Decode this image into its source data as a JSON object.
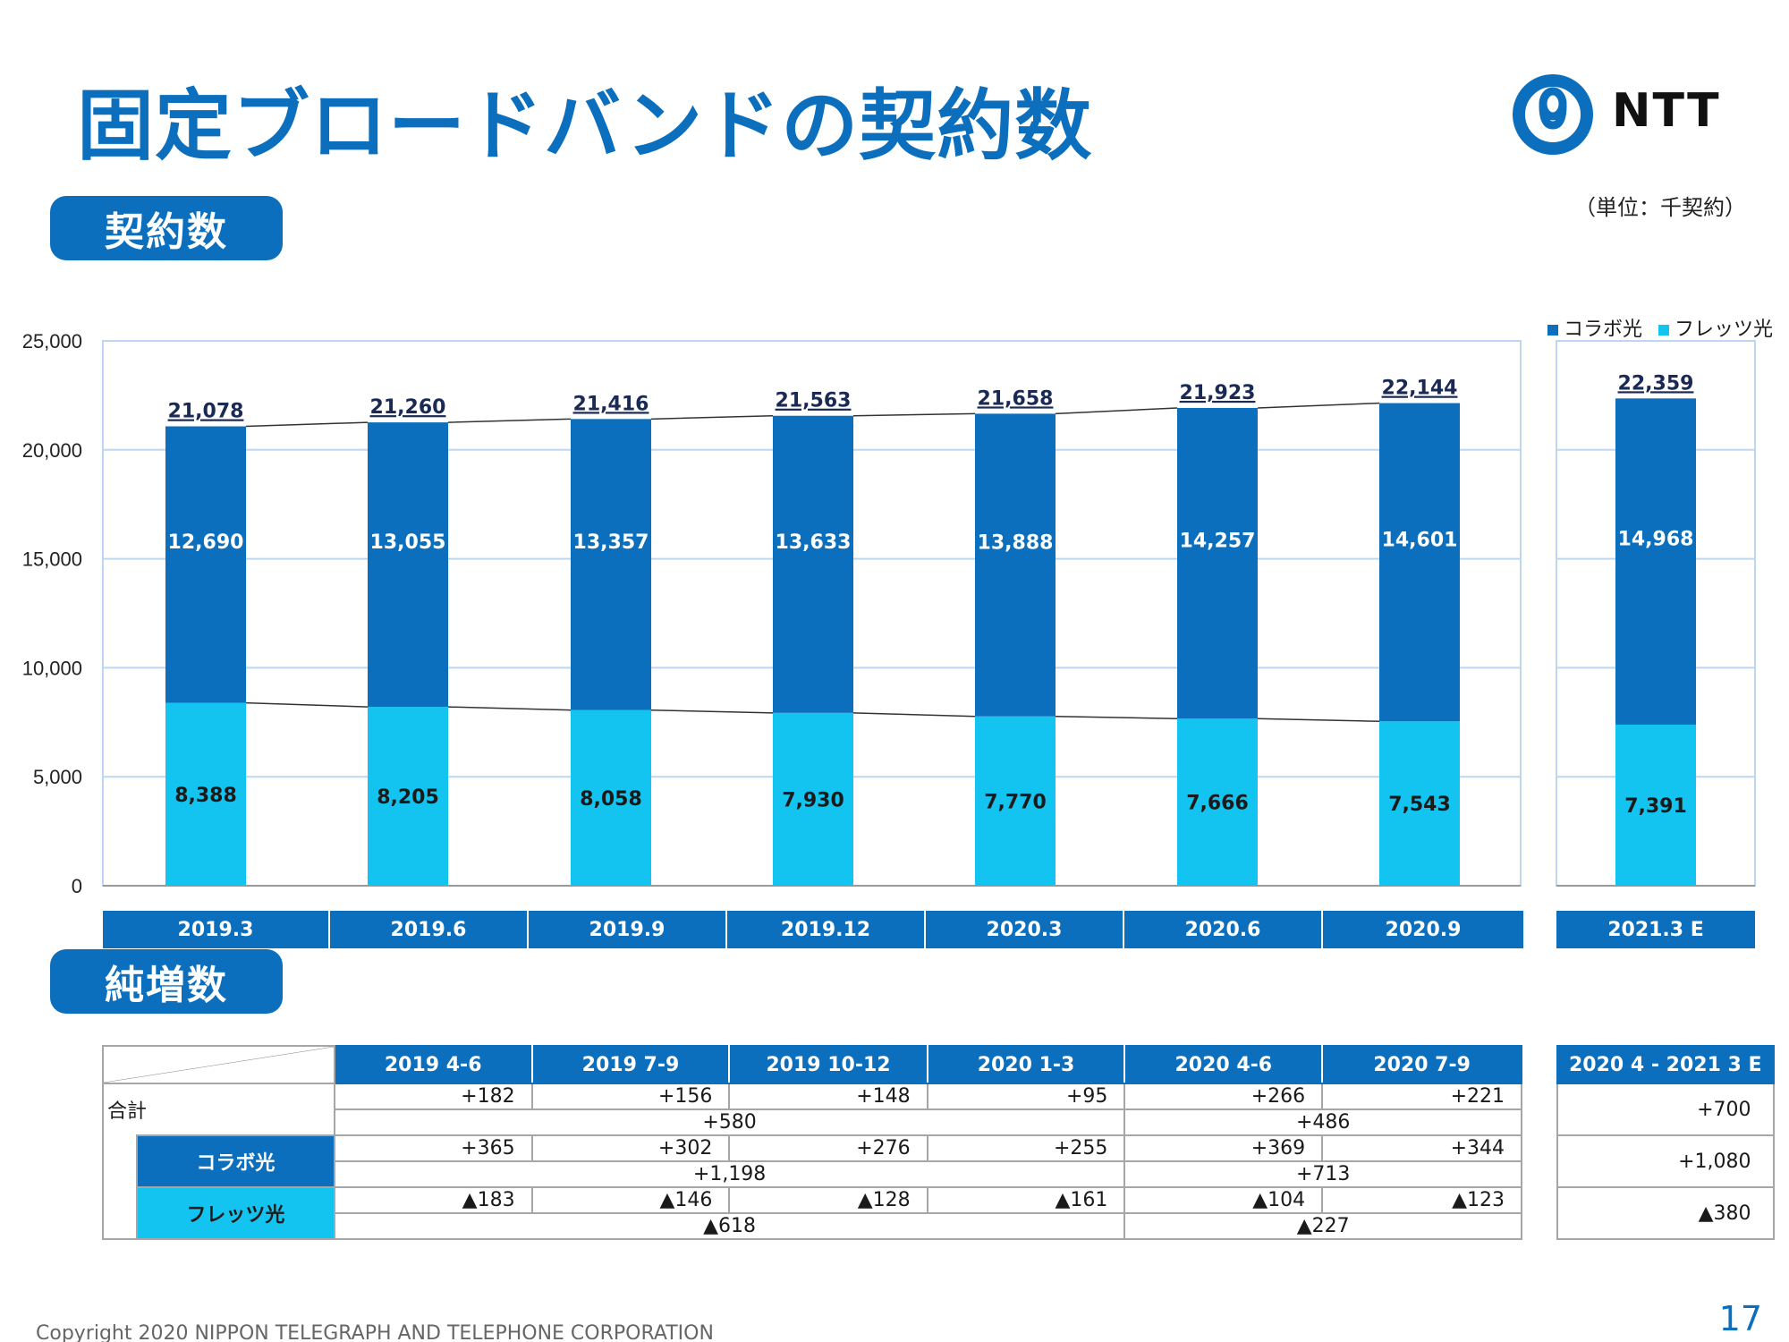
{
  "title": "固定ブロードバンドの契約数",
  "logo": {
    "text": "NTT",
    "icon": "ntt-logo-icon"
  },
  "unit_note": "（単位：千契約）",
  "section1_label": "契約数",
  "section2_label": "純増数",
  "colors": {
    "dark": "#0b6fbd",
    "light": "#12c4ef",
    "grid": "#bdd7f0"
  },
  "chart_data": {
    "type": "bar",
    "stacked": true,
    "title": "",
    "xlabel": "",
    "ylabel": "",
    "ylim": [
      0,
      25000
    ],
    "yticks": [
      "0",
      "5,000",
      "10,000",
      "15,000",
      "20,000",
      "25,000"
    ],
    "legend": {
      "position": "top-right"
    },
    "categories": [
      "2019.3",
      "2019.6",
      "2019.9",
      "2019.12",
      "2020.3",
      "2020.6",
      "2020.9",
      "2021.3 E"
    ],
    "series": [
      {
        "name": "フレッツ光",
        "values": [
          8388,
          8205,
          8058,
          7930,
          7770,
          7666,
          7543,
          7391
        ],
        "labels": [
          "8,388",
          "8,205",
          "8,058",
          "7,930",
          "7,770",
          "7,666",
          "7,543",
          "7,391"
        ]
      },
      {
        "name": "コラボ光",
        "values": [
          12690,
          13055,
          13357,
          13633,
          13888,
          14257,
          14601,
          14968
        ],
        "labels": [
          "12,690",
          "13,055",
          "13,357",
          "13,633",
          "13,888",
          "14,257",
          "14,601",
          "14,968"
        ]
      }
    ],
    "totals": [
      21078,
      21260,
      21416,
      21563,
      21658,
      21923,
      22144,
      22359
    ],
    "total_labels": [
      "21,078",
      "21,260",
      "21,416",
      "21,563",
      "21,658",
      "21,923",
      "22,144",
      "22,359"
    ]
  },
  "net_adds": {
    "headers": [
      "2019 4-6",
      "2019 7-9",
      "2019 10-12",
      "2020 1-3",
      "2020 4-6",
      "2020 7-9"
    ],
    "forecast_header": "2020 4 - 2021 3 E",
    "rows": [
      {
        "label": "合計",
        "quarterly": [
          "+182",
          "+156",
          "+148",
          "+95",
          "+266",
          "+221"
        ],
        "subtotal": [
          "+580",
          "+486"
        ],
        "forecast": "+700"
      },
      {
        "label": "コラボ光",
        "quarterly": [
          "+365",
          "+302",
          "+276",
          "+255",
          "+369",
          "+344"
        ],
        "subtotal": [
          "+1,198",
          "+713"
        ],
        "forecast": "+1,080"
      },
      {
        "label": "フレッツ光",
        "quarterly": [
          "▲183",
          "▲146",
          "▲128",
          "▲161",
          "▲104",
          "▲123"
        ],
        "subtotal": [
          "▲618",
          "▲227"
        ],
        "forecast": "▲380"
      }
    ]
  },
  "footer": {
    "copyright": "Copyright 2020 NIPPON TELEGRAPH AND TELEPHONE CORPORATION",
    "page": "17"
  }
}
